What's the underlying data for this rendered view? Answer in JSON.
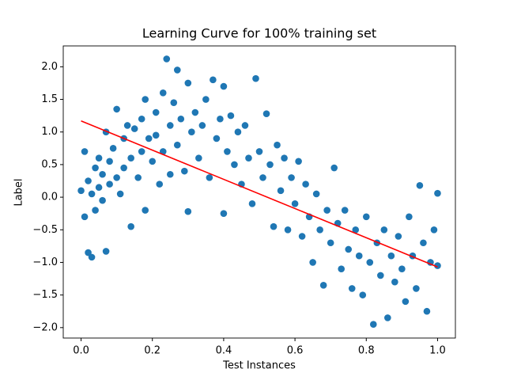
{
  "chart_data": {
    "type": "scatter",
    "title": "Learning Curve for 100% training set",
    "x_label": "Test Instances",
    "y_label": "Label",
    "xlim": [
      -0.05,
      1.05
    ],
    "ylim": [
      -2.16,
      2.32
    ],
    "xticks": [
      {
        "value": 0,
        "label": "0.0"
      },
      0.2,
      0.4,
      0.6,
      0.8,
      {
        "value": 1,
        "label": "1.0"
      }
    ],
    "yticks": [
      {
        "value": -2,
        "label": "−2.0"
      },
      {
        "value": -1.5,
        "label": "−1.5"
      },
      {
        "value": -1,
        "label": "−1.0"
      },
      {
        "value": -0.5,
        "label": "−0.5"
      },
      {
        "value": 0,
        "label": "0.0"
      },
      0.5,
      {
        "value": 1,
        "label": "1.0"
      },
      1.5,
      {
        "value": 2,
        "label": "2.0"
      }
    ],
    "series": [
      {
        "type": "scatter",
        "color": "#1f77b4",
        "x": [
          0.0,
          0.01,
          0.01,
          0.02,
          0.02,
          0.03,
          0.03,
          0.04,
          0.04,
          0.05,
          0.05,
          0.06,
          0.06,
          0.07,
          0.07,
          0.08,
          0.08,
          0.09,
          0.1,
          0.1,
          0.11,
          0.12,
          0.12,
          0.13,
          0.14,
          0.14,
          0.15,
          0.16,
          0.17,
          0.17,
          0.18,
          0.18,
          0.19,
          0.2,
          0.21,
          0.21,
          0.22,
          0.23,
          0.23,
          0.24,
          0.25,
          0.25,
          0.26,
          0.27,
          0.27,
          0.28,
          0.29,
          0.3,
          0.3,
          0.31,
          0.32,
          0.33,
          0.34,
          0.35,
          0.36,
          0.37,
          0.38,
          0.39,
          0.4,
          0.4,
          0.41,
          0.42,
          0.43,
          0.44,
          0.45,
          0.46,
          0.47,
          0.48,
          0.49,
          0.5,
          0.51,
          0.52,
          0.53,
          0.54,
          0.55,
          0.56,
          0.57,
          0.58,
          0.59,
          0.6,
          0.61,
          0.62,
          0.63,
          0.64,
          0.65,
          0.66,
          0.67,
          0.68,
          0.69,
          0.7,
          0.71,
          0.72,
          0.73,
          0.74,
          0.75,
          0.76,
          0.77,
          0.78,
          0.79,
          0.8,
          0.81,
          0.82,
          0.83,
          0.84,
          0.85,
          0.86,
          0.87,
          0.88,
          0.89,
          0.9,
          0.91,
          0.92,
          0.93,
          0.94,
          0.95,
          0.96,
          0.97,
          0.98,
          0.99,
          1.0,
          1.0
        ],
        "values": [
          0.1,
          -0.3,
          0.7,
          -0.85,
          0.25,
          0.05,
          -0.92,
          0.45,
          -0.2,
          0.6,
          0.15,
          0.35,
          -0.05,
          -0.83,
          1.0,
          0.55,
          0.2,
          0.75,
          1.35,
          0.3,
          0.05,
          0.9,
          0.45,
          1.1,
          -0.45,
          0.6,
          1.05,
          0.3,
          1.2,
          0.7,
          -0.2,
          1.5,
          0.9,
          0.55,
          1.3,
          0.95,
          0.2,
          1.6,
          0.7,
          2.12,
          1.1,
          0.35,
          1.45,
          1.95,
          0.8,
          1.2,
          0.4,
          1.75,
          -0.22,
          1.0,
          1.3,
          0.6,
          1.1,
          1.5,
          0.3,
          1.8,
          0.9,
          1.2,
          -0.25,
          1.7,
          0.7,
          1.25,
          0.5,
          1.0,
          0.2,
          1.1,
          0.6,
          -0.1,
          1.82,
          0.7,
          0.3,
          1.28,
          0.5,
          -0.45,
          0.8,
          0.1,
          0.6,
          -0.5,
          0.3,
          -0.1,
          0.55,
          -0.6,
          0.2,
          -0.3,
          -1.0,
          0.05,
          -0.5,
          -1.35,
          -0.2,
          -0.7,
          0.45,
          -0.4,
          -1.1,
          -0.2,
          -0.8,
          -1.4,
          -0.5,
          -0.9,
          -1.5,
          -0.3,
          -1.0,
          -1.95,
          -0.7,
          -1.2,
          -0.5,
          -1.85,
          -0.9,
          -1.3,
          -0.6,
          -1.1,
          -1.6,
          -0.3,
          -0.9,
          -1.4,
          0.18,
          -0.7,
          -1.75,
          -1.0,
          -0.5,
          0.06,
          -1.05
        ]
      },
      {
        "type": "line",
        "color": "#ff0000",
        "x": [
          0,
          1
        ],
        "values": [
          1.17,
          -1.07
        ]
      }
    ]
  }
}
